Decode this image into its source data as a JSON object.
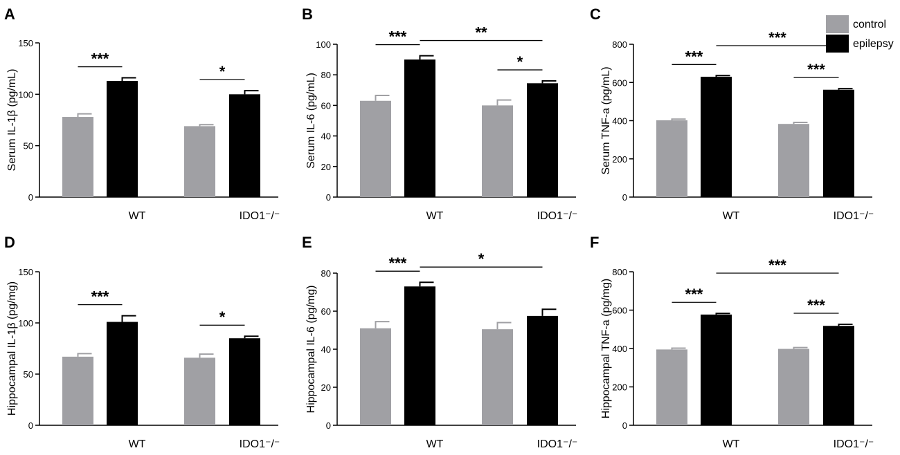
{
  "legend": {
    "items": [
      {
        "name": "control",
        "color": "#a0a0a4"
      },
      {
        "name": "epilepsy",
        "color": "#000000"
      }
    ]
  },
  "chart_data": [
    {
      "type": "bar",
      "panel": "A",
      "ylabel": "Serum IL-1β (pg/mL)",
      "ylim": [
        0,
        150
      ],
      "yticks": [
        0,
        50,
        100,
        150
      ],
      "categories": [
        "WT",
        "IDO1⁻/⁻"
      ],
      "series": [
        {
          "name": "control",
          "values": [
            78,
            69
          ],
          "errors": [
            3,
            1.5
          ]
        },
        {
          "name": "epilepsy",
          "values": [
            113,
            100
          ],
          "errors": [
            3,
            3.5
          ]
        }
      ],
      "significance": [
        {
          "label": "***",
          "from": [
            0,
            0
          ],
          "to": [
            0,
            1
          ]
        },
        {
          "label": "*",
          "from": [
            1,
            0
          ],
          "to": [
            1,
            1
          ]
        }
      ]
    },
    {
      "type": "bar",
      "panel": "B",
      "ylabel": "Serum IL-6 (pg/mL)",
      "ylim": [
        0,
        100
      ],
      "yticks": [
        0,
        20,
        40,
        60,
        80,
        100
      ],
      "categories": [
        "WT",
        "IDO1⁻/⁻"
      ],
      "series": [
        {
          "name": "control",
          "values": [
            63,
            60
          ],
          "errors": [
            3.5,
            3.5
          ]
        },
        {
          "name": "epilepsy",
          "values": [
            90,
            74.5
          ],
          "errors": [
            2.5,
            1.5
          ]
        }
      ],
      "significance": [
        {
          "label": "***",
          "from": [
            0,
            0
          ],
          "to": [
            0,
            1
          ]
        },
        {
          "label": "**",
          "from": [
            0,
            1
          ],
          "to": [
            1,
            1
          ]
        },
        {
          "label": "*",
          "from": [
            1,
            0
          ],
          "to": [
            1,
            1
          ]
        }
      ]
    },
    {
      "type": "bar",
      "panel": "C",
      "ylabel": "Serum TNF-a (pg/mL)",
      "ylim": [
        0,
        800
      ],
      "yticks": [
        0,
        200,
        400,
        600,
        800
      ],
      "categories": [
        "WT",
        "IDO1⁻/⁻"
      ],
      "series": [
        {
          "name": "control",
          "values": [
            402,
            383
          ],
          "errors": [
            6,
            8
          ]
        },
        {
          "name": "epilepsy",
          "values": [
            630,
            562
          ],
          "errors": [
            6,
            6
          ]
        }
      ],
      "significance": [
        {
          "label": "***",
          "from": [
            0,
            0
          ],
          "to": [
            0,
            1
          ]
        },
        {
          "label": "***",
          "from": [
            0,
            1
          ],
          "to": [
            1,
            1
          ]
        },
        {
          "label": "***",
          "from": [
            1,
            0
          ],
          "to": [
            1,
            1
          ]
        }
      ]
    },
    {
      "type": "bar",
      "panel": "D",
      "ylabel": "Hippocampal IL-1β (pg/mg)",
      "ylim": [
        0,
        150
      ],
      "yticks": [
        0,
        50,
        100,
        150
      ],
      "categories": [
        "WT",
        "IDO1⁻/⁻"
      ],
      "series": [
        {
          "name": "control",
          "values": [
            67,
            66
          ],
          "errors": [
            3,
            3.5
          ]
        },
        {
          "name": "epilepsy",
          "values": [
            101,
            85
          ],
          "errors": [
            6,
            2
          ]
        }
      ],
      "significance": [
        {
          "label": "***",
          "from": [
            0,
            0
          ],
          "to": [
            0,
            1
          ]
        },
        {
          "label": "*",
          "from": [
            1,
            0
          ],
          "to": [
            1,
            1
          ]
        }
      ]
    },
    {
      "type": "bar",
      "panel": "E",
      "ylabel": "Hippocampal IL-6 (pg/mg)",
      "ylim": [
        0,
        80
      ],
      "yticks": [
        0,
        20,
        40,
        60,
        80
      ],
      "categories": [
        "WT",
        "IDO1⁻/⁻"
      ],
      "series": [
        {
          "name": "control",
          "values": [
            51,
            50.5
          ],
          "errors": [
            3.5,
            3.5
          ]
        },
        {
          "name": "epilepsy",
          "values": [
            73,
            57.5
          ],
          "errors": [
            2.2,
            3.5
          ]
        }
      ],
      "significance": [
        {
          "label": "***",
          "from": [
            0,
            0
          ],
          "to": [
            0,
            1
          ]
        },
        {
          "label": "*",
          "from": [
            0,
            1
          ],
          "to": [
            1,
            1
          ]
        }
      ]
    },
    {
      "type": "bar",
      "panel": "F",
      "ylabel": "Hippocampal TNF-a (pg/mg)",
      "ylim": [
        0,
        800
      ],
      "yticks": [
        0,
        200,
        400,
        600,
        800
      ],
      "categories": [
        "WT",
        "IDO1⁻/⁻"
      ],
      "series": [
        {
          "name": "control",
          "values": [
            395,
            398
          ],
          "errors": [
            7,
            7
          ]
        },
        {
          "name": "epilepsy",
          "values": [
            577,
            518
          ],
          "errors": [
            6,
            8
          ]
        }
      ],
      "significance": [
        {
          "label": "***",
          "from": [
            0,
            0
          ],
          "to": [
            0,
            1
          ]
        },
        {
          "label": "***",
          "from": [
            0,
            1
          ],
          "to": [
            1,
            1
          ]
        },
        {
          "label": "***",
          "from": [
            1,
            0
          ],
          "to": [
            1,
            1
          ]
        }
      ]
    }
  ]
}
